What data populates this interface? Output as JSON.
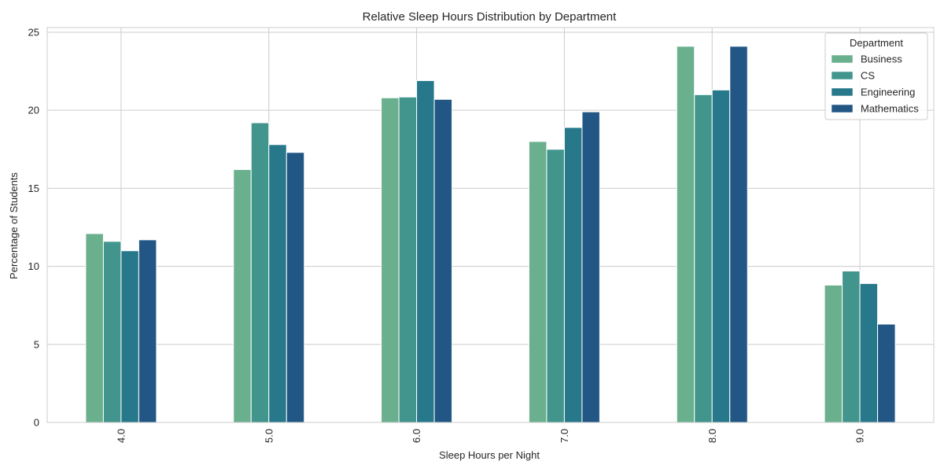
{
  "chart_data": {
    "type": "bar",
    "title": "Relative Sleep Hours Distribution by Department",
    "xlabel": "Sleep Hours per Night",
    "ylabel": "Percentage of Students",
    "categories": [
      "4.0",
      "5.0",
      "6.0",
      "7.0",
      "8.0",
      "9.0"
    ],
    "ylim": [
      0,
      25.3
    ],
    "yticks": [
      0,
      5,
      10,
      15,
      20,
      25
    ],
    "grid": true,
    "legend": {
      "title": "Department",
      "placement": "top-right"
    },
    "series": [
      {
        "name": "Business",
        "color": "#6ab08e",
        "values": [
          12.1,
          16.2,
          20.8,
          18.0,
          24.1,
          8.8
        ]
      },
      {
        "name": "CS",
        "color": "#41958d",
        "values": [
          11.6,
          19.2,
          20.85,
          17.5,
          21.0,
          9.7
        ]
      },
      {
        "name": "Engineering",
        "color": "#26788a",
        "values": [
          11.0,
          17.8,
          21.9,
          18.9,
          21.3,
          8.9
        ]
      },
      {
        "name": "Mathematics",
        "color": "#225785",
        "values": [
          11.7,
          17.3,
          20.7,
          19.9,
          24.1,
          6.3
        ]
      }
    ]
  }
}
